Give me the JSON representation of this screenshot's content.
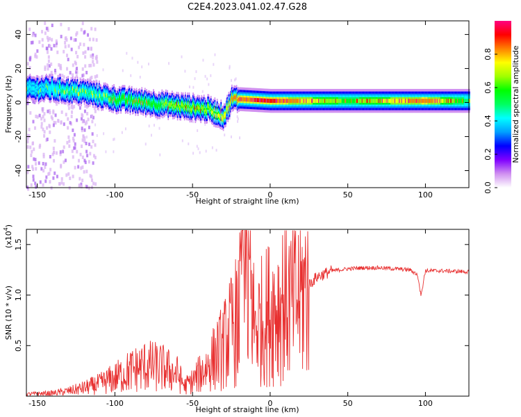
{
  "figure": {
    "title": "C2E4.2023.041.02.47.G28"
  },
  "chart_data": [
    {
      "type": "heatmap",
      "title": "C2E4.2023.041.02.47.G28",
      "xlabel": "Height of straight line (km)",
      "ylabel": "Frequency (Hz)",
      "xlim": [
        -157,
        128
      ],
      "ylim": [
        -50,
        48
      ],
      "x_ticks": [
        -150,
        -100,
        -50,
        0,
        50,
        100
      ],
      "y_ticks": [
        -40,
        -20,
        0,
        20,
        40
      ],
      "colorbar": {
        "label": "Normalized spectral amplitude",
        "range": [
          0,
          1
        ],
        "ticks": [
          0.0,
          0.2,
          0.4,
          0.6,
          0.8
        ],
        "tick_labels": [
          "0.0",
          "0.2",
          "0.4",
          "0.6",
          "0.8"
        ],
        "colormap": "hsv-rainbow",
        "colors": [
          "#ffffff",
          "#d090f0",
          "#8000ff",
          "#0000ff",
          "#00a0ff",
          "#00ffff",
          "#00ff60",
          "#00ff00",
          "#a0ff00",
          "#ffff00",
          "#ff8000",
          "#ff0000",
          "#ff0080"
        ]
      },
      "ridge": {
        "description_x": [
          -157,
          -140,
          -120,
          -100,
          -80,
          -60,
          -40,
          -30,
          -25,
          -20,
          0,
          50,
          100,
          128
        ],
        "center_hz": [
          8,
          8,
          6,
          2,
          0,
          -2,
          -4,
          -8,
          2,
          2,
          1,
          1,
          1,
          1
        ],
        "peak_level": [
          0.4,
          0.45,
          0.5,
          0.55,
          0.6,
          0.65,
          0.7,
          0.75,
          0.8,
          0.85,
          0.9,
          0.6,
          0.85,
          0.5
        ]
      }
    },
    {
      "type": "line",
      "xlabel": "Height of straight line (km)",
      "ylabel": "SNR (10 * v/v)",
      "scale_label": "(x10",
      "scale_exp": "4",
      "scale_close": ")",
      "xlim": [
        -157,
        128
      ],
      "ylim": [
        0,
        1.65
      ],
      "x_ticks": [
        -150,
        -100,
        -50,
        0,
        50,
        100
      ],
      "y_ticks": [
        0.5,
        1.0,
        1.5
      ],
      "y_tick_labels": [
        "0.5",
        "1.0",
        "1.5"
      ],
      "color": "#e83030",
      "series": [
        {
          "x": [
            -157,
            -140,
            -130,
            -120,
            -110,
            -100,
            -90,
            -80,
            -70,
            -60,
            -55,
            -50,
            -40,
            -30,
            -20,
            -16,
            -10,
            -5,
            0,
            5,
            10,
            14,
            20,
            25,
            30,
            40,
            50,
            60,
            70,
            80,
            90,
            95,
            97,
            100,
            110,
            128
          ],
          "y": [
            0.02,
            0.03,
            0.05,
            0.08,
            0.12,
            0.18,
            0.25,
            0.3,
            0.28,
            0.22,
            0.1,
            0.15,
            0.3,
            0.5,
            0.8,
            1.4,
            0.7,
            0.75,
            0.85,
            0.9,
            1.0,
            0.9,
            1.0,
            1.1,
            1.18,
            1.24,
            1.26,
            1.27,
            1.27,
            1.26,
            1.25,
            1.2,
            1.0,
            1.24,
            1.24,
            1.23
          ]
        }
      ]
    }
  ]
}
